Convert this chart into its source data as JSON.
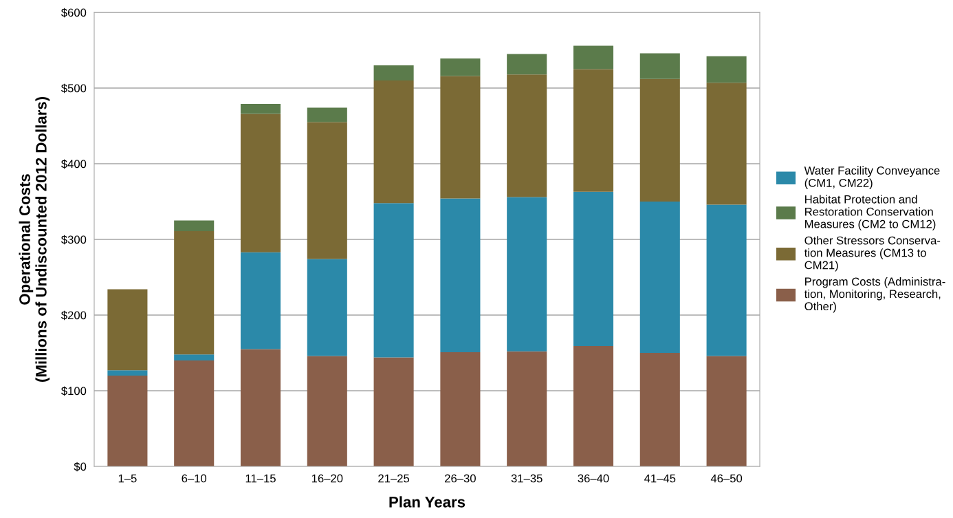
{
  "chart_data": {
    "type": "bar",
    "stacked": true,
    "xlabel": "Plan Years",
    "ylabel": "Operational Costs\n(Millions of Undiscounted 2012 Dollars)",
    "categories": [
      "1–5",
      "6–10",
      "11–15",
      "16–20",
      "21–25",
      "26–30",
      "31–35",
      "36–40",
      "41–45",
      "46–50"
    ],
    "series": [
      {
        "name": "Program Costs (Administra-\ntion, Monitoring, Research,\nOther)",
        "color": "#8a5f4a",
        "values": [
          120,
          140,
          155,
          146,
          144,
          151,
          152,
          159,
          150,
          146
        ]
      },
      {
        "name": "Water Facility Conveyance\n(CM1, CM22)",
        "color": "#2b89a9",
        "values": [
          7,
          8,
          128,
          128,
          204,
          203,
          204,
          204,
          200,
          200
        ]
      },
      {
        "name": "Other Stressors Conserva-\ntion Measures (CM13 to\nCM21)",
        "color": "#7b6a35",
        "values": [
          107,
          163,
          183,
          181,
          162,
          162,
          162,
          162,
          162,
          161
        ]
      },
      {
        "name": "Habitat Protection and\nRestoration Conservation\nMeasures (CM2 to CM12)",
        "color": "#5b7b4b",
        "values": [
          0,
          14,
          13,
          19,
          20,
          23,
          27,
          31,
          34,
          35
        ]
      }
    ],
    "ylim": [
      0,
      600
    ],
    "yticks": [
      {
        "value": 0,
        "label": "$0"
      },
      {
        "value": 100,
        "label": "$100"
      },
      {
        "value": 200,
        "label": "$200"
      },
      {
        "value": 300,
        "label": "$300"
      },
      {
        "value": 400,
        "label": "$400"
      },
      {
        "value": 500,
        "label": "$500"
      },
      {
        "value": 600,
        "label": "$600"
      }
    ],
    "grid": "y",
    "legend": "right"
  }
}
